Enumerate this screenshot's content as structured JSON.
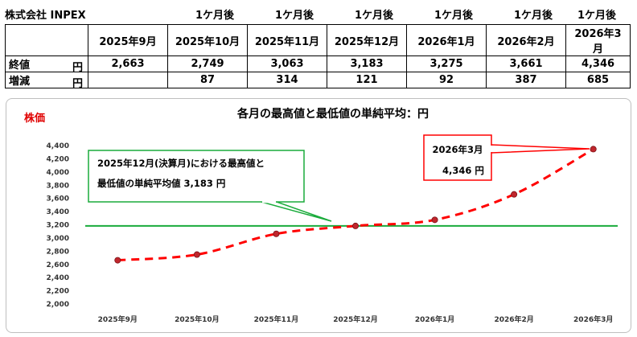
{
  "header": {
    "company": "株式会社 INPEX",
    "after_labels": [
      "1ケ月後",
      "1ケ月後",
      "1ケ月後",
      "1ケ月後",
      "1ケ月後",
      "1ケ月後"
    ]
  },
  "table": {
    "columns": [
      "2025年9月",
      "2025年10月",
      "2025年11月",
      "2025年12月",
      "2026年1月",
      "2026年2月",
      "2026年3月"
    ],
    "rows": [
      {
        "label": "終値",
        "unit": "円",
        "values": [
          "2,663",
          "2,749",
          "3,063",
          "3,183",
          "3,275",
          "3,661",
          "4,346"
        ]
      },
      {
        "label": "増減",
        "unit": "円",
        "values": [
          "",
          "87",
          "314",
          "121",
          "92",
          "387",
          "685"
        ]
      }
    ]
  },
  "chart_data": {
    "type": "line",
    "title": "各月の最高値と最低値の単純平均：円",
    "ylabel": "株価",
    "categories": [
      "2025年9月",
      "2025年10月",
      "2025年11月",
      "2025年12月",
      "2026年1月",
      "2026年2月",
      "2026年3月"
    ],
    "series": [
      {
        "values": [
          2663,
          2749,
          3063,
          3183,
          3275,
          3661,
          4346
        ],
        "color": "#ff0000",
        "marker_color": "#c0262d",
        "style": "dashed"
      }
    ],
    "reference_line": {
      "value": 3183,
      "color": "#1aab3b"
    },
    "ylim": [
      2000,
      4400
    ],
    "yticks": [
      "2,000",
      "2,200",
      "2,400",
      "2,600",
      "2,800",
      "3,000",
      "3,200",
      "3,400",
      "3,600",
      "3,800",
      "4,000",
      "4,200",
      "4,400"
    ],
    "annotations": {
      "green": {
        "line1": "2025年12月(決算月)における最高値と",
        "line2": "最低値の単純平均値 3,183 円",
        "color": "#1aab3b"
      },
      "red": {
        "line1": "2026年3月",
        "line2": "4,346 円",
        "color": "#ff0000"
      }
    }
  }
}
